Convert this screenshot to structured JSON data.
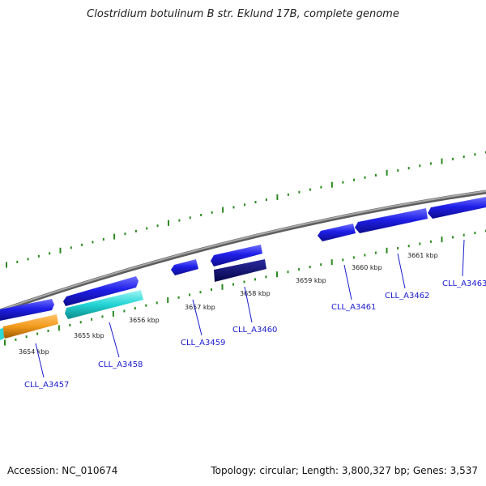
{
  "title": "Clostridium botulinum B str. Eklund 17B, complete genome",
  "footer": {
    "accession": "Accession: NC_010674",
    "stats": "Topology: circular; Length: 3,800,327 bp; Genes: 3,537"
  },
  "colors": {
    "backbone": "#8c8c8c",
    "tick": "#2a8a1e",
    "label_line": "#1a1ad0",
    "forward_gene": "#1a1ae6",
    "forward_gene_dark": "#0c0c8c",
    "reverse_gene_navy": "#0a0a78",
    "cyan_gene": "#22d4d4",
    "orange_gene": "#f29a1c"
  },
  "kbp_ticks": [
    "3654 kbp",
    "3655 kbp",
    "3656 kbp",
    "3657 kbp",
    "3658 kbp",
    "3659 kbp",
    "3660 kbp",
    "3661 kbp"
  ],
  "gene_labels": [
    "CLL_A3457",
    "CLL_A3458",
    "CLL_A3459",
    "CLL_A3460",
    "CLL_A3461",
    "CLL_A3462",
    "CLL_A3463"
  ]
}
